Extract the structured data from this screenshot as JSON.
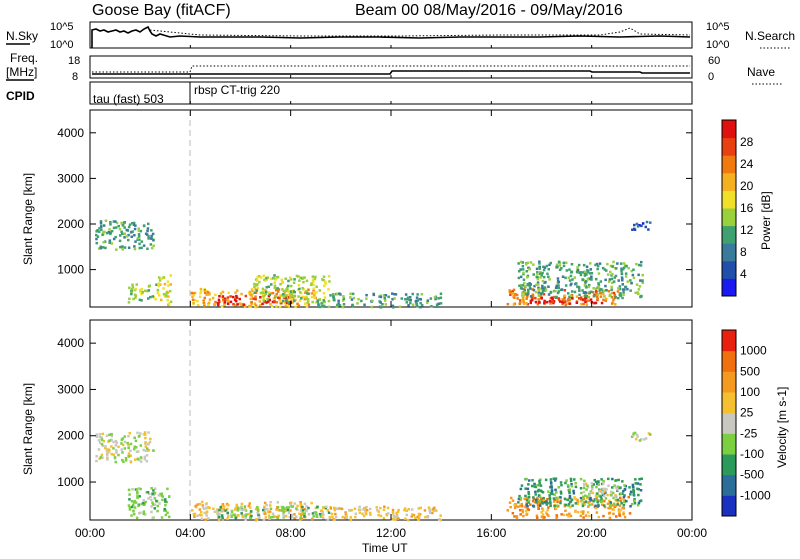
{
  "header": {
    "station": "Goose Bay (fitACF)",
    "beam_date": "Beam 00  08/May/2016 - 09/May/2016"
  },
  "top_panels": {
    "nsky_label": "N.Sky",
    "nsearch_label": "N.Search",
    "freq_label_line1": "Freq.",
    "freq_label_line2": "[MHz]",
    "nave_label": "Nave",
    "cpid_label": "CPID",
    "left_ticks_noise": [
      "10^5",
      "10^0"
    ],
    "right_ticks_noise": [
      "10^5",
      "10^0"
    ],
    "left_ticks_freq": [
      "18",
      "8"
    ],
    "right_ticks_freq": [
      "60",
      "0"
    ],
    "cpid_segments": [
      {
        "label": "tau (fast) 503",
        "start_hour": 0.0
      },
      {
        "label": "rbsp CT-trig 220",
        "start_hour": 4.0
      }
    ]
  },
  "axes": {
    "xlabel": "Time UT",
    "ylabel": "Slant Range [km]",
    "x_ticks": [
      "00:00",
      "04:00",
      "08:00",
      "12:00",
      "16:00",
      "20:00",
      "00:00"
    ],
    "y_ticks": [
      "1000",
      "2000",
      "3000",
      "4000"
    ],
    "xlim_hours": [
      0,
      24
    ],
    "ylim_km": [
      180,
      4500
    ],
    "control_program_boundary_hour": 4.0
  },
  "power_scale": {
    "label": "Power [dB]",
    "ticks": [
      "4",
      "8",
      "12",
      "16",
      "20",
      "24",
      "28"
    ],
    "colors": [
      "#1a1af0",
      "#1f4fa8",
      "#3a7a9a",
      "#3fa070",
      "#9ad03a",
      "#f0e02a",
      "#f5b020",
      "#f07a10",
      "#e84010",
      "#e01010"
    ]
  },
  "velocity_scale": {
    "label": "Velocity [m s-1]",
    "ticks": [
      "1000",
      "500",
      "100",
      "25",
      "-25",
      "-100",
      "-500",
      "-1000"
    ],
    "colors": [
      "#1a30c0",
      "#2c6e9a",
      "#2c9a5a",
      "#7ad040",
      "#c8c8c0",
      "#f5c030",
      "#f59a20",
      "#f07010",
      "#e82010"
    ]
  },
  "chart_data": [
    {
      "type": "heatmap",
      "title": "Power",
      "xlabel": "Time UT",
      "ylabel": "Slant Range [km]",
      "regions": [
        {
          "t0": 0.2,
          "t1": 2.5,
          "r0": 1450,
          "r1": 2100,
          "level": 3
        },
        {
          "t0": 1.5,
          "t1": 2.6,
          "r0": 300,
          "r1": 700,
          "level": 4
        },
        {
          "t0": 2.6,
          "t1": 3.2,
          "r0": 250,
          "r1": 900,
          "level": 5
        },
        {
          "t0": 4.0,
          "t1": 9.0,
          "r0": 200,
          "r1": 600,
          "level": 6
        },
        {
          "t0": 5.0,
          "t1": 8.0,
          "r0": 250,
          "r1": 450,
          "level": 9
        },
        {
          "t0": 6.5,
          "t1": 9.5,
          "r0": 300,
          "r1": 900,
          "level": 4
        },
        {
          "t0": 9.0,
          "t1": 14.0,
          "r0": 200,
          "r1": 500,
          "level": 3
        },
        {
          "t0": 16.6,
          "t1": 21.0,
          "r0": 250,
          "r1": 600,
          "level": 7
        },
        {
          "t0": 17.5,
          "t1": 20.5,
          "r0": 280,
          "r1": 420,
          "level": 9
        },
        {
          "t0": 17.0,
          "t1": 22.0,
          "r0": 400,
          "r1": 1200,
          "level": 3
        },
        {
          "t0": 21.5,
          "t1": 22.3,
          "r0": 1900,
          "r1": 2100,
          "level": 1
        }
      ]
    },
    {
      "type": "heatmap",
      "title": "Velocity",
      "xlabel": "Time UT",
      "ylabel": "Slant Range [km]",
      "regions": [
        {
          "t0": 0.2,
          "t1": 2.5,
          "r0": 1450,
          "r1": 2100,
          "level": 4
        },
        {
          "t0": 1.5,
          "t1": 3.2,
          "r0": 250,
          "r1": 900,
          "level": 3
        },
        {
          "t0": 4.0,
          "t1": 9.0,
          "r0": 200,
          "r1": 600,
          "level": 5
        },
        {
          "t0": 5.0,
          "t1": 9.5,
          "r0": 250,
          "r1": 500,
          "level": 3
        },
        {
          "t0": 9.0,
          "t1": 14.0,
          "r0": 200,
          "r1": 500,
          "level": 5
        },
        {
          "t0": 16.6,
          "t1": 21.5,
          "r0": 250,
          "r1": 700,
          "level": 6
        },
        {
          "t0": 17.0,
          "t1": 22.0,
          "r0": 500,
          "r1": 1100,
          "level": 2
        },
        {
          "t0": 19.5,
          "t1": 21.0,
          "r0": 700,
          "r1": 1000,
          "level": 4
        },
        {
          "t0": 21.5,
          "t1": 22.3,
          "r0": 1900,
          "r1": 2100,
          "level": 4
        }
      ]
    }
  ]
}
